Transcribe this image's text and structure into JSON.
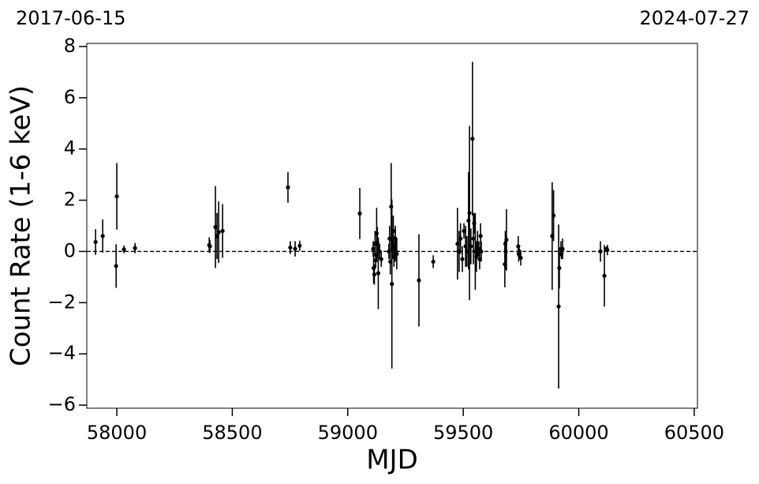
{
  "chart_data": {
    "type": "errorbar",
    "annotations": [
      "2017-06-15",
      "2024-07-27"
    ],
    "x_label": "MJD",
    "y_label": "Count Rate (1-6 keV)",
    "color": "#000000",
    "reference_y": 0,
    "x": [
      57908,
      57939,
      57997,
      58000,
      58031,
      58079,
      58400,
      58403,
      58427,
      58434,
      58441,
      58458,
      58741,
      58751,
      58772,
      58792,
      59052,
      59110,
      59112,
      59115,
      59118,
      59121,
      59125,
      59128,
      59132,
      59138,
      59145,
      59178,
      59181,
      59184,
      59188,
      59191,
      59194,
      59197,
      59200,
      59203,
      59206,
      59209,
      59212,
      59308,
      59370,
      59475,
      59482,
      59488,
      59496,
      59503,
      59510,
      59516,
      59523,
      59527,
      59533,
      59540,
      59544,
      59547,
      59552,
      59557,
      59562,
      59567,
      59571,
      59575,
      59578,
      59680,
      59682,
      59684,
      59687,
      59738,
      59740,
      59742,
      59749,
      59885,
      59891,
      59913,
      59916,
      59923,
      59925,
      59930,
      60094,
      60111,
      60121,
      60124
    ],
    "values": [
      0.37,
      0.6,
      -0.57,
      2.15,
      0.08,
      0.13,
      0.25,
      0.2,
      0.95,
      0.6,
      0.75,
      0.8,
      2.5,
      0.15,
      0.1,
      0.22,
      1.48,
      0.1,
      -0.65,
      -0.9,
      0.3,
      -0.35,
      0.7,
      0.35,
      -0.85,
      0.0,
      -0.3,
      0.0,
      0.5,
      -0.4,
      1.75,
      -1.27,
      0.2,
      0.8,
      -0.2,
      0.1,
      0.5,
      0.0,
      -0.1,
      -1.13,
      -0.4,
      0.3,
      0.0,
      0.5,
      -0.3,
      0.8,
      0.2,
      0.0,
      1.2,
      1.5,
      0.2,
      4.4,
      0.5,
      1.1,
      0.0,
      -0.2,
      0.3,
      0.1,
      -0.3,
      0.6,
      0.0,
      -0.5,
      0.3,
      0.0,
      0.45,
      0.2,
      -0.1,
      0.0,
      -0.25,
      0.6,
      1.4,
      -2.15,
      -0.65,
      0.1,
      -0.1,
      0.1,
      0.0,
      -0.95,
      0.1,
      0.05
    ],
    "errors": [
      0.5,
      0.65,
      0.85,
      1.3,
      0.15,
      0.2,
      0.3,
      0.25,
      1.6,
      0.9,
      1.2,
      1.05,
      0.6,
      0.25,
      0.3,
      0.2,
      1.0,
      0.3,
      0.6,
      0.4,
      0.5,
      0.3,
      1.0,
      0.6,
      1.4,
      0.3,
      0.3,
      0.3,
      0.5,
      0.5,
      1.7,
      3.3,
      0.5,
      0.6,
      0.4,
      0.5,
      0.5,
      0.4,
      0.6,
      1.8,
      0.25,
      1.4,
      0.8,
      0.6,
      0.5,
      0.3,
      0.8,
      0.6,
      1.9,
      3.4,
      0.7,
      3.0,
      1.0,
      0.4,
      1.5,
      0.6,
      0.5,
      0.3,
      0.4,
      0.5,
      0.4,
      0.9,
      0.5,
      0.7,
      1.2,
      0.4,
      0.3,
      0.2,
      0.3,
      2.1,
      1.0,
      3.2,
      0.8,
      0.3,
      0.2,
      0.4,
      0.4,
      1.2,
      0.1,
      0.2
    ],
    "xlim": [
      57870,
      60514
    ],
    "ylim": [
      -6.12,
      8.12
    ],
    "xticks": [
      58000,
      58500,
      59000,
      59500,
      60000,
      60500
    ],
    "yticks": [
      {
        "value": -6,
        "label": "−6"
      },
      {
        "value": -4,
        "label": "−4"
      },
      {
        "value": -2,
        "label": "−2"
      },
      0,
      2,
      4,
      6,
      8
    ]
  }
}
